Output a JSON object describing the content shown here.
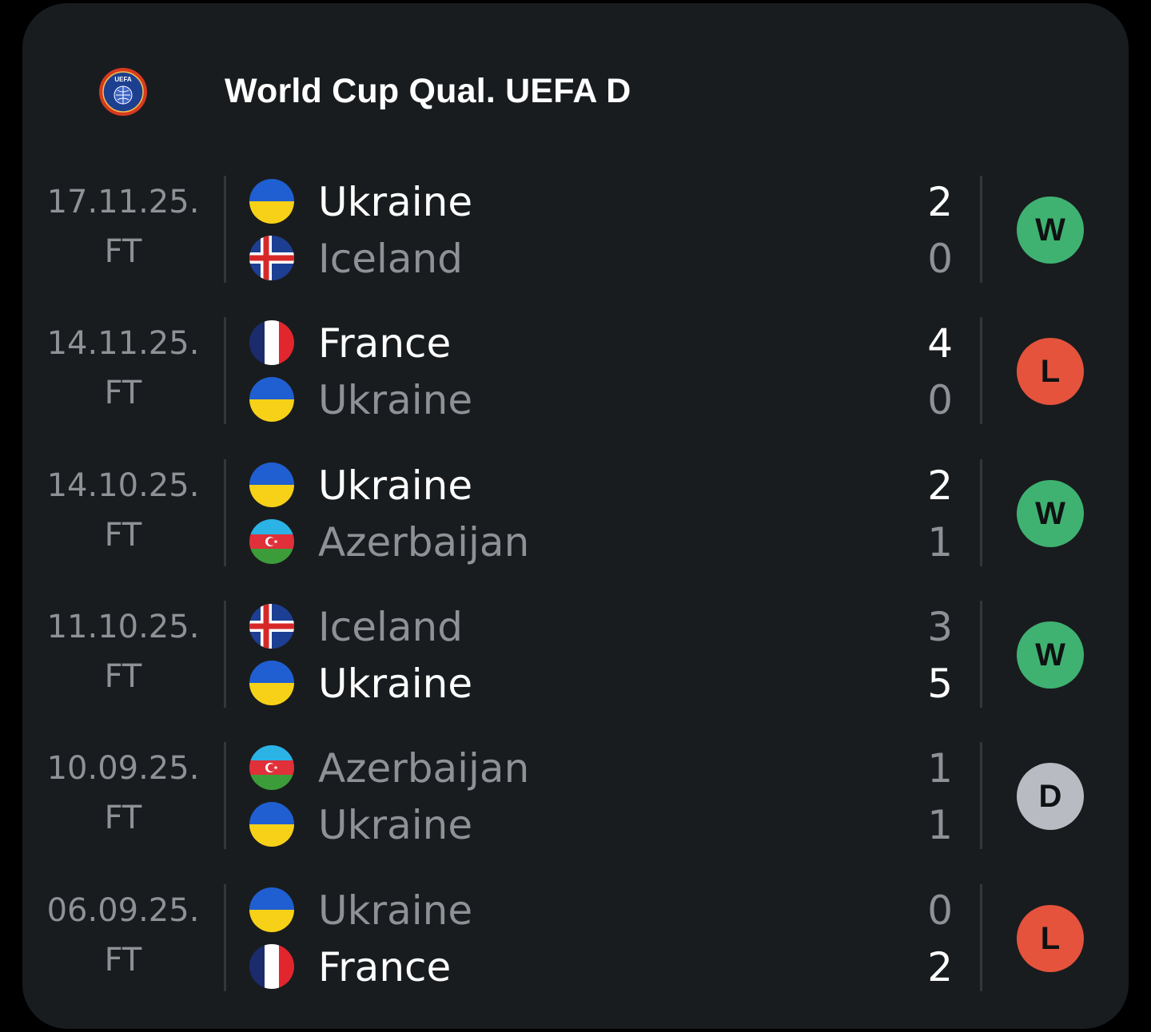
{
  "league": {
    "title": "World Cup Qual. UEFA D",
    "logo_icon": "uefa-logo-icon"
  },
  "colors": {
    "win": "#3fb272",
    "loss": "#e5533d",
    "draw": "#b8bcc2"
  },
  "matches": [
    {
      "date": "17.11.25.",
      "status": "FT",
      "home": {
        "name": "Ukraine",
        "flag": "ukraine",
        "score": "2",
        "bold": true
      },
      "away": {
        "name": "Iceland",
        "flag": "iceland",
        "score": "0",
        "bold": false
      },
      "result": "W",
      "result_type": "win"
    },
    {
      "date": "14.11.25.",
      "status": "FT",
      "home": {
        "name": "France",
        "flag": "france",
        "score": "4",
        "bold": true
      },
      "away": {
        "name": "Ukraine",
        "flag": "ukraine",
        "score": "0",
        "bold": false
      },
      "result": "L",
      "result_type": "loss"
    },
    {
      "date": "14.10.25.",
      "status": "FT",
      "home": {
        "name": "Ukraine",
        "flag": "ukraine",
        "score": "2",
        "bold": true
      },
      "away": {
        "name": "Azerbaijan",
        "flag": "azerbaijan",
        "score": "1",
        "bold": false
      },
      "result": "W",
      "result_type": "win"
    },
    {
      "date": "11.10.25.",
      "status": "FT",
      "home": {
        "name": "Iceland",
        "flag": "iceland",
        "score": "3",
        "bold": false
      },
      "away": {
        "name": "Ukraine",
        "flag": "ukraine",
        "score": "5",
        "bold": true
      },
      "result": "W",
      "result_type": "win"
    },
    {
      "date": "10.09.25.",
      "status": "FT",
      "home": {
        "name": "Azerbaijan",
        "flag": "azerbaijan",
        "score": "1",
        "bold": false
      },
      "away": {
        "name": "Ukraine",
        "flag": "ukraine",
        "score": "1",
        "bold": false
      },
      "result": "D",
      "result_type": "draw"
    },
    {
      "date": "06.09.25.",
      "status": "FT",
      "home": {
        "name": "Ukraine",
        "flag": "ukraine",
        "score": "0",
        "bold": false
      },
      "away": {
        "name": "France",
        "flag": "france",
        "score": "2",
        "bold": true
      },
      "result": "L",
      "result_type": "loss"
    }
  ]
}
